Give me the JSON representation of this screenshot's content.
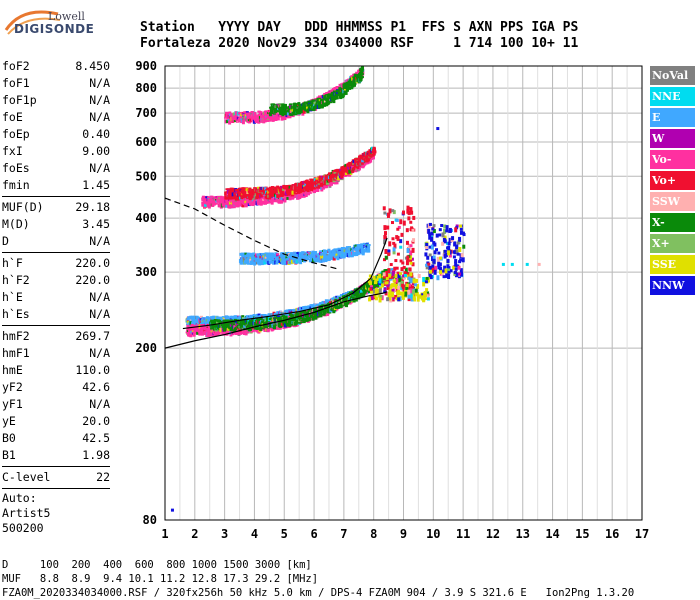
{
  "logo": {
    "line1": "Lowell",
    "line2": "DIGISONDE"
  },
  "header": {
    "line1": "Station   YYYY DAY   DDD HHMMSS P1  FFS S AXN PPS IGA PS",
    "line2": "Fortaleza 2020 Nov29 334 034000 RSF     1 714 100 10+ 11"
  },
  "params": {
    "group1": [
      {
        "k": "foF2",
        "v": "8.450"
      },
      {
        "k": "foF1",
        "v": "N/A"
      },
      {
        "k": "foF1p",
        "v": "N/A"
      },
      {
        "k": "foE",
        "v": "N/A"
      },
      {
        "k": "foEp",
        "v": "0.40"
      },
      {
        "k": "fxI",
        "v": "9.00"
      },
      {
        "k": "foEs",
        "v": "N/A"
      },
      {
        "k": "fmin",
        "v": "1.45"
      }
    ],
    "group2": [
      {
        "k": "MUF(D)",
        "v": "29.18"
      },
      {
        "k": "M(D)",
        "v": "3.45"
      },
      {
        "k": "D",
        "v": "N/A"
      }
    ],
    "group3": [
      {
        "k": "h`F",
        "v": "220.0"
      },
      {
        "k": "h`F2",
        "v": "220.0"
      },
      {
        "k": "h`E",
        "v": "N/A"
      },
      {
        "k": "h`Es",
        "v": "N/A"
      }
    ],
    "group4": [
      {
        "k": "hmF2",
        "v": "269.7"
      },
      {
        "k": "hmF1",
        "v": "N/A"
      },
      {
        "k": "hmE",
        "v": "110.0"
      },
      {
        "k": "yF2",
        "v": "42.6"
      },
      {
        "k": "yF1",
        "v": "N/A"
      },
      {
        "k": "yE",
        "v": "20.0"
      },
      {
        "k": "B0",
        "v": "42.5"
      },
      {
        "k": "B1",
        "v": "1.98"
      }
    ],
    "group5": [
      {
        "k": "C-level",
        "v": "22"
      }
    ],
    "auto": [
      "Auto:",
      "Artist5",
      "500200"
    ]
  },
  "legend": [
    {
      "label": "NoVal",
      "color": "#808080"
    },
    {
      "label": "NNE",
      "color": "#00dcf0"
    },
    {
      "label": "E",
      "color": "#40a8ff"
    },
    {
      "label": "W",
      "color": "#b000b0"
    },
    {
      "label": "Vo-",
      "color": "#ff30a0"
    },
    {
      "label": "Vo+",
      "color": "#f01030"
    },
    {
      "label": "SSW",
      "color": "#ffb0b0"
    },
    {
      "label": "X-",
      "color": "#0a8a0a"
    },
    {
      "label": "X+",
      "color": "#80c060"
    },
    {
      "label": "SSE",
      "color": "#e0e000"
    },
    {
      "label": "NNW",
      "color": "#1010e0"
    }
  ],
  "footer": {
    "line1": "D     100  200  400  600  800 1000 1500 3000 [km]",
    "line2": "MUF   8.8  8.9  9.4 10.1 11.2 12.8 17.3 29.2 [MHz]",
    "line3": "FZA0M_2020334034000.RSF / 320fx256h 50 kHz 5.0 km / DPS-4 FZA0M 904 / 3.9 S 321.6 E   Ion2Png 1.3.20"
  },
  "chart_data": {
    "type": "scatter",
    "title": "",
    "xlabel": "",
    "ylabel": "",
    "xlim": [
      1,
      17
    ],
    "ylim": [
      80,
      900
    ],
    "y_scale": "log",
    "x_ticks": [
      1,
      2,
      3,
      4,
      5,
      6,
      7,
      8,
      9,
      10,
      11,
      12,
      13,
      14,
      15,
      16,
      17
    ],
    "y_ticks": [
      80,
      200,
      300,
      400,
      500,
      600,
      700,
      800,
      900
    ],
    "grid": true,
    "legend_position": "right",
    "traces": [
      {
        "kind": "echo_band",
        "color": "#40a8ff",
        "x_start": 1.7,
        "x_end": 8.6,
        "y_start": 232,
        "y_end": 300
      },
      {
        "kind": "echo_band",
        "color": "#40a8ff",
        "x_start": 3.5,
        "x_end": 7.8,
        "y_start": 325,
        "y_end": 345
      },
      {
        "kind": "echo_band",
        "color": "#ff30a0",
        "x_start": 1.7,
        "x_end": 8.4,
        "y_start": 222,
        "y_end": 300
      },
      {
        "kind": "echo_band",
        "color": "#0a8a0a",
        "x_start": 2.5,
        "x_end": 8.4,
        "y_start": 228,
        "y_end": 300
      },
      {
        "kind": "echo_band",
        "color": "#ff30a0",
        "x_start": 2.2,
        "x_end": 8.0,
        "y_start": 440,
        "y_end": 570
      },
      {
        "kind": "echo_band",
        "color": "#f01030",
        "x_start": 3.0,
        "x_end": 8.0,
        "y_start": 460,
        "y_end": 580
      },
      {
        "kind": "echo_band",
        "color": "#ff30a0",
        "x_start": 3.0,
        "x_end": 7.6,
        "y_start": 690,
        "y_end": 880
      },
      {
        "kind": "echo_band",
        "color": "#0a8a0a",
        "x_start": 4.5,
        "x_end": 7.6,
        "y_start": 720,
        "y_end": 880
      },
      {
        "kind": "echo_cluster",
        "color": "#f01030",
        "x_range": [
          8.3,
          9.3
        ],
        "y_range": [
          270,
          430
        ]
      },
      {
        "kind": "echo_cluster",
        "color": "#1010e0",
        "x_range": [
          9.7,
          11.0
        ],
        "y_range": [
          295,
          390
        ]
      },
      {
        "kind": "echo_cluster",
        "color": "#e0e000",
        "x_range": [
          7.8,
          9.8
        ],
        "y_range": [
          262,
          300
        ]
      }
    ],
    "curves": [
      {
        "kind": "true_height_profile",
        "style": "solid",
        "x": [
          1.0,
          2.0,
          3.0,
          4.0,
          5.0,
          6.0,
          7.0,
          7.8,
          8.3,
          8.45
        ],
        "y": [
          200,
          208,
          215,
          224,
          232,
          242,
          256,
          264,
          268,
          270
        ]
      },
      {
        "kind": "fitted_trace",
        "style": "solid",
        "x": [
          1.6,
          2.5,
          3.5,
          4.5,
          5.5,
          6.5,
          7.3,
          7.9,
          8.25,
          8.45
        ],
        "y": [
          222,
          226,
          232,
          237,
          243,
          252,
          268,
          290,
          330,
          360
        ]
      },
      {
        "kind": "electron_density_extrapolation",
        "style": "dashed",
        "x": [
          1.0,
          2.0,
          3.0,
          4.0,
          5.0,
          6.0,
          6.8
        ],
        "y": [
          445,
          420,
          385,
          355,
          330,
          315,
          305
        ]
      }
    ],
    "isolated_points": [
      {
        "x": 12.3,
        "y": 315,
        "color": "#00dcf0"
      },
      {
        "x": 12.6,
        "y": 315,
        "color": "#00dcf0"
      },
      {
        "x": 13.1,
        "y": 315,
        "color": "#00dcf0"
      },
      {
        "x": 13.5,
        "y": 315,
        "color": "#ffb0b0"
      },
      {
        "x": 10.1,
        "y": 650,
        "color": "#1010e0"
      },
      {
        "x": 1.2,
        "y": 85,
        "color": "#1010e0"
      }
    ]
  }
}
